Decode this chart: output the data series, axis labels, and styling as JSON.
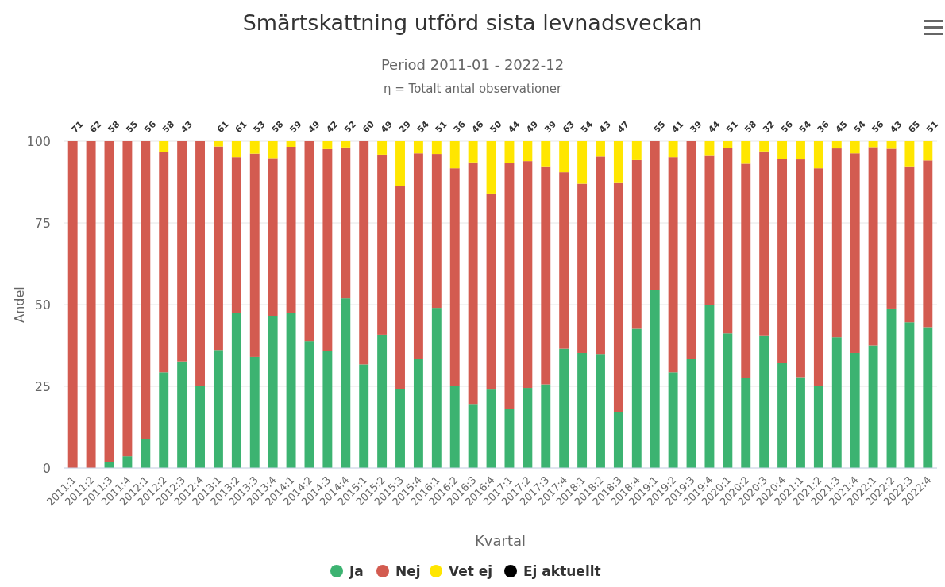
{
  "chart_data": {
    "type": "bar",
    "stacked": true,
    "title": "Smärtskattning utförd sista levnadsveckan",
    "subtitle": "Period 2011-01 - 2022-12",
    "xlabel": "Kvartal",
    "ylabel": "Andel",
    "categories": [
      "2011:1",
      "2011:2",
      "2011:3",
      "2011:4",
      "2012:1",
      "2012:2",
      "2012:3",
      "2012:4",
      "2013:1",
      "2013:2",
      "2013:3",
      "2013:4",
      "2014:1",
      "2014:2",
      "2014:3",
      "2014:4",
      "2015:1",
      "2015:2",
      "2015:3",
      "2015:4",
      "2016:1",
      "2016:2",
      "2016:3",
      "2016:4",
      "2017:1",
      "2017:2",
      "2017:3",
      "2017:4",
      "2018:1",
      "2018:2",
      "2018:3",
      "2018:4",
      "2019:1",
      "2019:2",
      "2019:3",
      "2019:4",
      "2020:1",
      "2020:2",
      "2020:3",
      "2020:4",
      "2021:1",
      "2021:2",
      "2021:3",
      "2021:4",
      "2022:1",
      "2022:2",
      "2022:3",
      "2022:4"
    ],
    "series": [
      {
        "name": "Ja",
        "color": "#3cb371",
        "values": [
          0,
          0,
          1.7,
          3.6,
          8.9,
          29.3,
          32.6,
          25,
          36.1,
          47.5,
          34,
          46.6,
          47.5,
          38.8,
          35.7,
          51.9,
          31.7,
          40.8,
          24.1,
          33.3,
          49,
          25,
          19.6,
          24,
          18.2,
          24.5,
          25.6,
          36.5,
          35.2,
          34.9,
          17,
          42.6,
          54.5,
          29.3,
          33.3,
          50,
          41.2,
          27.6,
          40.6,
          32.1,
          27.8,
          25,
          40,
          35.2,
          37.5,
          48.8,
          44.6,
          43.1
        ]
      },
      {
        "name": "Nej",
        "color": "#d35b50",
        "values": [
          100,
          100,
          98.3,
          96.4,
          91.1,
          67.3,
          67.4,
          75,
          62.3,
          47.6,
          62.2,
          48.2,
          50.8,
          61.2,
          61.9,
          46.2,
          68.3,
          55.1,
          62.1,
          63,
          47.1,
          66.7,
          73.9,
          60,
          75,
          69.4,
          66.7,
          54,
          51.8,
          60.4,
          70.2,
          51.6,
          45.5,
          65.8,
          66.7,
          45.5,
          56.8,
          65.5,
          56.3,
          62.5,
          66.6,
          66.7,
          57.8,
          61.1,
          60.7,
          48.9,
          47.7,
          51
        ]
      },
      {
        "name": "Vet ej",
        "color": "#ffe600",
        "values": [
          0,
          0,
          0,
          0,
          0,
          3.4,
          0,
          0,
          1.6,
          4.9,
          3.8,
          5.2,
          1.7,
          0,
          2.4,
          1.9,
          0,
          4.1,
          13.8,
          3.7,
          3.9,
          8.3,
          6.5,
          16,
          6.8,
          6.1,
          7.7,
          9.5,
          13,
          4.7,
          12.8,
          5.8,
          0,
          4.9,
          0,
          4.5,
          2,
          6.9,
          3.1,
          5.4,
          5.6,
          8.3,
          2.2,
          3.7,
          1.8,
          2.3,
          7.7,
          5.9
        ]
      },
      {
        "name": "Ej aktuellt",
        "color": "#000000",
        "values": [
          0,
          0,
          0,
          0,
          0,
          0,
          0,
          0,
          0,
          0,
          0,
          0,
          0,
          0,
          0,
          0,
          0,
          0,
          0,
          0,
          0,
          0,
          0,
          0,
          0,
          0,
          0,
          0,
          0,
          0,
          0,
          0,
          0,
          0,
          0,
          0,
          0,
          0,
          0,
          0,
          0,
          0,
          0,
          0,
          0,
          0,
          0,
          0
        ]
      }
    ],
    "ylim": [
      0,
      100
    ],
    "yticks": [
      0,
      25,
      50,
      75,
      100
    ],
    "grid": "y",
    "legend": "bottom",
    "annotations": [
      "η = Totalt antal observationer",
      {
        "text": "71",
        "x": "2011:1",
        "y": 100
      },
      {
        "text": "62",
        "x": "2011:2",
        "y": 100
      },
      {
        "text": "58",
        "x": "2011:3",
        "y": 100
      },
      {
        "text": "55",
        "x": "2011:4",
        "y": 100
      },
      {
        "text": "56",
        "x": "2012:1",
        "y": 100
      },
      {
        "text": "58",
        "x": "2012:2",
        "y": 100
      },
      {
        "text": "43",
        "x": "2012:3",
        "y": 100
      },
      {
        "text": "61",
        "x": "2013:1",
        "y": 100
      },
      {
        "text": "61",
        "x": "2013:2",
        "y": 100
      },
      {
        "text": "53",
        "x": "2013:3",
        "y": 100
      },
      {
        "text": "58",
        "x": "2013:4",
        "y": 100
      },
      {
        "text": "59",
        "x": "2014:1",
        "y": 100
      },
      {
        "text": "49",
        "x": "2014:2",
        "y": 100
      },
      {
        "text": "42",
        "x": "2014:3",
        "y": 100
      },
      {
        "text": "52",
        "x": "2014:4",
        "y": 100
      },
      {
        "text": "60",
        "x": "2015:1",
        "y": 100
      },
      {
        "text": "49",
        "x": "2015:2",
        "y": 100
      },
      {
        "text": "29",
        "x": "2015:3",
        "y": 100
      },
      {
        "text": "54",
        "x": "2015:4",
        "y": 100
      },
      {
        "text": "51",
        "x": "2016:1",
        "y": 100
      },
      {
        "text": "36",
        "x": "2016:2",
        "y": 100
      },
      {
        "text": "46",
        "x": "2016:3",
        "y": 100
      },
      {
        "text": "50",
        "x": "2016:4",
        "y": 100
      },
      {
        "text": "44",
        "x": "2017:1",
        "y": 100
      },
      {
        "text": "49",
        "x": "2017:2",
        "y": 100
      },
      {
        "text": "39",
        "x": "2017:3",
        "y": 100
      },
      {
        "text": "63",
        "x": "2017:4",
        "y": 100
      },
      {
        "text": "54",
        "x": "2018:1",
        "y": 100
      },
      {
        "text": "43",
        "x": "2018:2",
        "y": 100
      },
      {
        "text": "47",
        "x": "2018:3",
        "y": 100
      },
      {
        "text": "55",
        "x": "2019:1",
        "y": 100
      },
      {
        "text": "41",
        "x": "2019:2",
        "y": 100
      },
      {
        "text": "39",
        "x": "2019:3",
        "y": 100
      },
      {
        "text": "44",
        "x": "2019:4",
        "y": 100
      },
      {
        "text": "51",
        "x": "2020:1",
        "y": 100
      },
      {
        "text": "58",
        "x": "2020:2",
        "y": 100
      },
      {
        "text": "32",
        "x": "2020:3",
        "y": 100
      },
      {
        "text": "56",
        "x": "2020:4",
        "y": 100
      },
      {
        "text": "54",
        "x": "2021:1",
        "y": 100
      },
      {
        "text": "36",
        "x": "2021:2",
        "y": 100
      },
      {
        "text": "45",
        "x": "2021:3",
        "y": 100
      },
      {
        "text": "54",
        "x": "2021:4",
        "y": 100
      },
      {
        "text": "56",
        "x": "2022:1",
        "y": 100
      },
      {
        "text": "43",
        "x": "2022:2",
        "y": 100
      },
      {
        "text": "65",
        "x": "2022:3",
        "y": 100
      },
      {
        "text": "51",
        "x": "2022:4",
        "y": 100
      }
    ]
  }
}
